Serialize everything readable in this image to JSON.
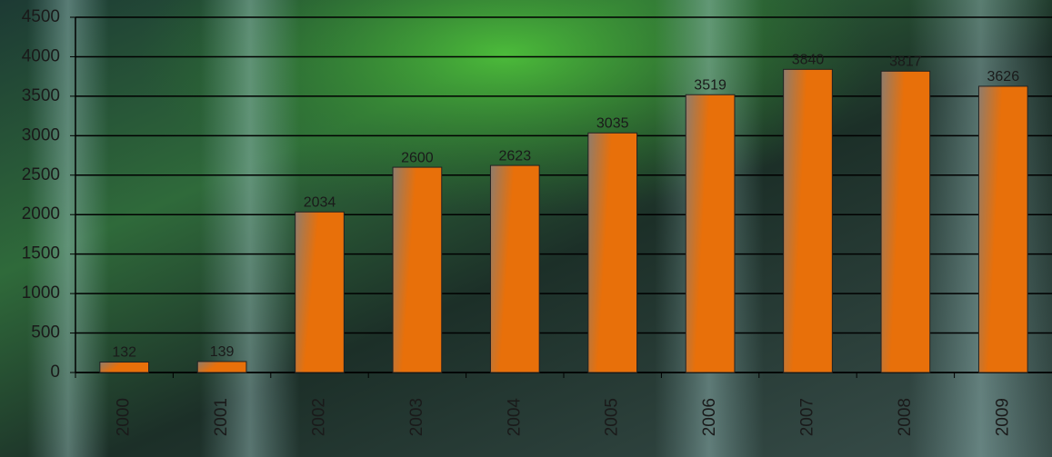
{
  "chart_data": {
    "type": "bar",
    "categories": [
      "2000",
      "2001",
      "2002",
      "2003",
      "2004",
      "2005",
      "2006",
      "2007",
      "2008",
      "2009"
    ],
    "values": [
      132,
      139,
      2034,
      2600,
      2623,
      3035,
      3519,
      3840,
      3817,
      3626
    ],
    "color": "#e8700a",
    "ylim": [
      0,
      4500
    ],
    "yticks": [
      0,
      500,
      1000,
      1500,
      2000,
      2500,
      3000,
      3500,
      4000,
      4500
    ],
    "grid": true
  }
}
